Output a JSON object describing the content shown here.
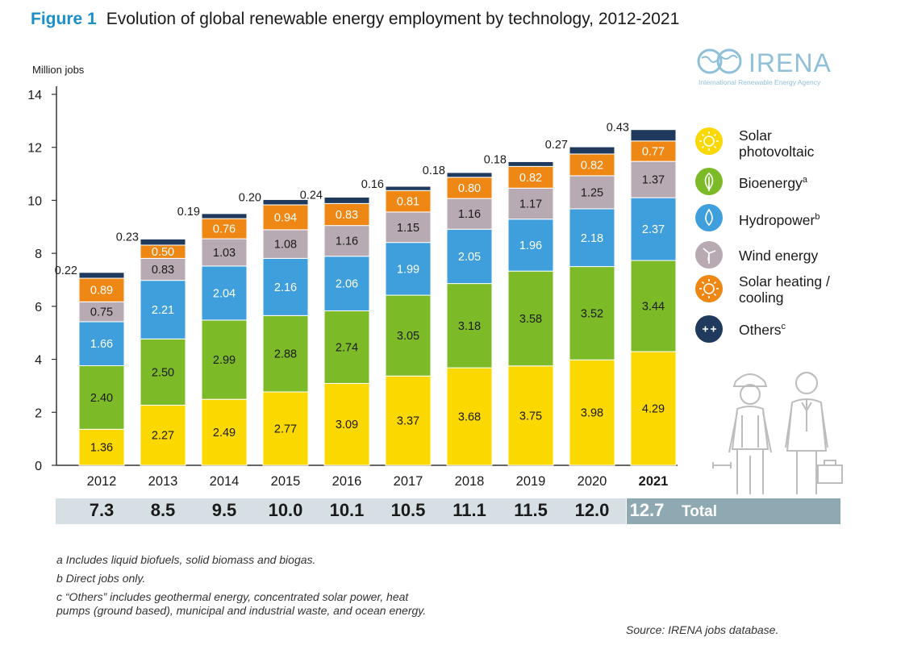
{
  "figure": {
    "number": "Figure 1",
    "title": "Evolution of global renewable energy employment by technology, 2012-2021"
  },
  "logo": {
    "name": "IRENA",
    "subtitle": "International Renewable Energy Agency"
  },
  "chart_data": {
    "type": "bar",
    "stacked": true,
    "title": "Evolution of global renewable energy employment by technology, 2012-2021",
    "ylabel": "Million jobs",
    "xlabel": "",
    "ylim": [
      0,
      14
    ],
    "yticks": [
      "0",
      "2",
      "4",
      "6",
      "8",
      "10",
      "12",
      "14"
    ],
    "grid": false,
    "legend_position": "right",
    "categories": [
      "2012",
      "2013",
      "2014",
      "2015",
      "2016",
      "2017",
      "2018",
      "2019",
      "2020",
      "2021"
    ],
    "highlight_category": "2021",
    "series": [
      {
        "name": "Solar photovoltaic",
        "color": "#fad800",
        "values": [
          1.36,
          2.27,
          2.49,
          2.77,
          3.09,
          3.37,
          3.68,
          3.75,
          3.98,
          4.29
        ],
        "labels": [
          "1.36",
          "2.27",
          "2.49",
          "2.77",
          "3.09",
          "3.37",
          "3.68",
          "3.75",
          "3.98",
          "4.29"
        ]
      },
      {
        "name": "Bioenergy",
        "color": "#7dba28",
        "values": [
          2.4,
          2.5,
          2.99,
          2.88,
          2.74,
          3.05,
          3.18,
          3.58,
          3.52,
          3.44
        ],
        "labels": [
          "2.40",
          "2.50",
          "2.99",
          "2.88",
          "2.74",
          "3.05",
          "3.18",
          "3.58",
          "3.52",
          "3.44"
        ]
      },
      {
        "name": "Hydropower",
        "color": "#3e9fdc",
        "values": [
          1.66,
          2.21,
          2.04,
          2.16,
          2.06,
          1.99,
          2.05,
          1.96,
          2.18,
          2.37
        ],
        "labels": [
          "1.66",
          "2.21",
          "2.04",
          "2.16",
          "2.06",
          "1.99",
          "2.05",
          "1.96",
          "2.18",
          "2.37"
        ]
      },
      {
        "name": "Wind energy",
        "color": "#b8aab2",
        "values": [
          0.75,
          0.83,
          1.03,
          1.08,
          1.16,
          1.15,
          1.16,
          1.17,
          1.25,
          1.37
        ],
        "labels": [
          "0.75",
          "0.83",
          "1.03",
          "1.08",
          "1.16",
          "1.15",
          "1.16",
          "1.17",
          "1.25",
          "1.37"
        ]
      },
      {
        "name": "Solar heating / cooling",
        "color": "#ee8714",
        "values": [
          0.89,
          0.5,
          0.76,
          0.94,
          0.83,
          0.81,
          0.8,
          0.82,
          0.82,
          0.77
        ],
        "labels": [
          "0.89",
          "0.50",
          "0.76",
          "0.94",
          "0.83",
          "0.81",
          "0.80",
          "0.82",
          "0.82",
          "0.77"
        ]
      },
      {
        "name": "Others",
        "color": "#1f3a5c",
        "values": [
          0.22,
          0.23,
          0.19,
          0.2,
          0.24,
          0.16,
          0.18,
          0.18,
          0.27,
          0.43
        ],
        "labels": [
          "0.22",
          "0.23",
          "0.19",
          "0.20",
          "0.24",
          "0.16",
          "0.18",
          "0.18",
          "0.27",
          "0.43"
        ]
      }
    ],
    "totals": [
      "7.3",
      "8.5",
      "9.5",
      "10.0",
      "10.1",
      "10.5",
      "11.1",
      "11.5",
      "12.0",
      "12.7"
    ],
    "totals_label": "Total"
  },
  "legend": [
    {
      "label": "Solar\nphotovoltaic",
      "sup": "",
      "color": "#fad800",
      "icon": "sun-icon"
    },
    {
      "label": "Bioenergy",
      "sup": "a",
      "color": "#7dba28",
      "icon": "leaf-icon"
    },
    {
      "label": "Hydropower",
      "sup": "b",
      "color": "#3e9fdc",
      "icon": "water-drop-icon"
    },
    {
      "label": "Wind energy",
      "sup": "",
      "color": "#b8aab2",
      "icon": "wind-turbine-icon"
    },
    {
      "label": "Solar heating /\ncooling",
      "sup": "",
      "color": "#ee8714",
      "icon": "sun-icon"
    },
    {
      "label": "Others",
      "sup": "c",
      "color": "#1f3a5c",
      "icon": "plus-minus-icon"
    }
  ],
  "notes": [
    "a  Includes liquid biofuels, solid biomass and biogas.",
    "b  Direct jobs only.",
    "c  “Others” includes geothermal energy, concentrated solar power, heat pumps (ground based), municipal and industrial waste, and ocean energy."
  ],
  "source": "Source: IRENA jobs database."
}
